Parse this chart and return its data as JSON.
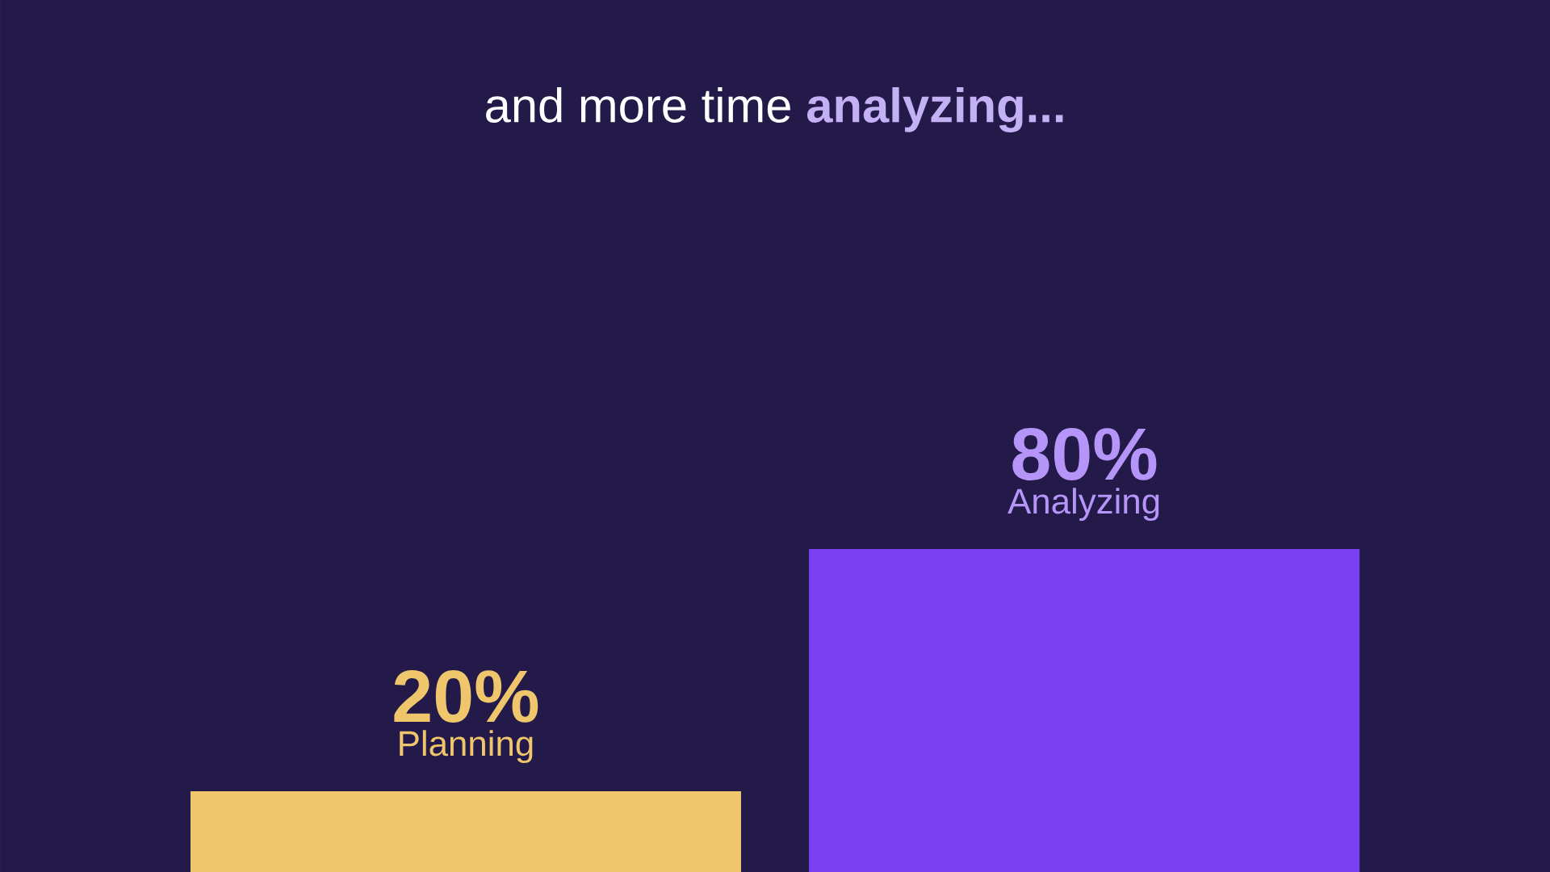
{
  "chart_data": {
    "type": "bar",
    "title": "and more time **analyzing...**",
    "categories": [
      "Planning",
      "Analyzing"
    ],
    "values": [
      20,
      80
    ],
    "value_labels": [
      "20%",
      "80%"
    ],
    "colors": [
      "#f0c66c",
      "#7b3ff2"
    ]
  }
}
